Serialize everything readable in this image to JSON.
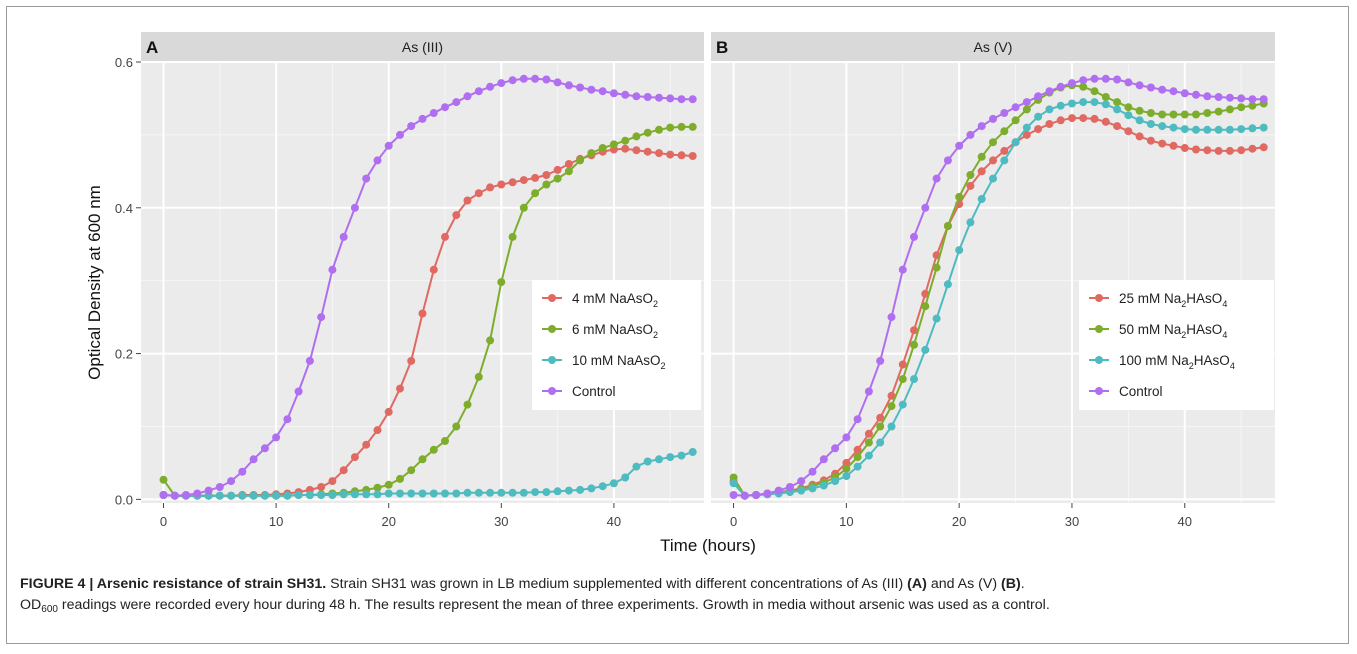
{
  "figure": {
    "ylabel": "Optical Density at 600 nm",
    "xlabel": "Time (hours)",
    "y_ticks": [
      "0.0",
      "0.2",
      "0.4",
      "0.6"
    ],
    "x_ticks": [
      "0",
      "10",
      "20",
      "30",
      "40"
    ]
  },
  "colors": {
    "red": "#E06A62",
    "green": "#7EAD2E",
    "cyan": "#4DBBC0",
    "purple": "#B06EF0",
    "panel": "#EBEBEB",
    "strip": "#D9D9D9"
  },
  "caption": {
    "label": "FIGURE 4 | Arsenic resistance of strain SH31.",
    "sentence1_pre": " Strain SH31 was grown in LB medium supplemented with different concentrations of As (III) ",
    "ref_a": "(A)",
    "sentence1_mid": " and As (V) ",
    "ref_b": "(B)",
    "sentence1_end": ".",
    "od_main": "OD",
    "od_sub": "600",
    "sentence2": " readings were recorded every hour during 48 h. The results represent the mean of three experiments. Growth in media without arsenic was used as a control."
  },
  "chart_data": [
    {
      "type": "line",
      "panel_letter": "A",
      "title": "As (III)",
      "xlim": [
        -2,
        48
      ],
      "ylim": [
        -0.005,
        0.6
      ],
      "x": [
        0,
        1,
        2,
        3,
        4,
        5,
        6,
        7,
        8,
        9,
        10,
        11,
        12,
        13,
        14,
        15,
        16,
        17,
        18,
        19,
        20,
        21,
        22,
        23,
        24,
        25,
        26,
        27,
        28,
        29,
        30,
        31,
        32,
        33,
        34,
        35,
        36,
        37,
        38,
        39,
        40,
        41,
        42,
        43,
        44,
        45,
        46,
        47
      ],
      "series": [
        {
          "name": "4 mM NaAsO2",
          "legend_main": "4 mM NaAsO",
          "legend_sub": "2",
          "color_key": "red",
          "values": [
            0.006,
            0.005,
            0.005,
            0.005,
            0.005,
            0.005,
            0.005,
            0.006,
            0.006,
            0.006,
            0.007,
            0.008,
            0.01,
            0.013,
            0.017,
            0.025,
            0.04,
            0.058,
            0.075,
            0.095,
            0.12,
            0.152,
            0.19,
            0.255,
            0.315,
            0.36,
            0.39,
            0.41,
            0.42,
            0.428,
            0.432,
            0.435,
            0.438,
            0.441,
            0.445,
            0.452,
            0.46,
            0.467,
            0.472,
            0.477,
            0.48,
            0.481,
            0.479,
            0.477,
            0.475,
            0.473,
            0.472,
            0.471
          ]
        },
        {
          "name": "6 mM NaAsO2",
          "legend_main": "6 mM NaAsO",
          "legend_sub": "2",
          "color_key": "green",
          "values": [
            0.027,
            0.005,
            0.005,
            0.005,
            0.005,
            0.005,
            0.005,
            0.005,
            0.005,
            0.005,
            0.005,
            0.005,
            0.006,
            0.006,
            0.007,
            0.008,
            0.009,
            0.011,
            0.013,
            0.016,
            0.02,
            0.028,
            0.04,
            0.055,
            0.068,
            0.08,
            0.1,
            0.13,
            0.168,
            0.218,
            0.298,
            0.36,
            0.4,
            0.42,
            0.432,
            0.44,
            0.45,
            0.465,
            0.475,
            0.482,
            0.487,
            0.492,
            0.498,
            0.503,
            0.507,
            0.51,
            0.511,
            0.511
          ]
        },
        {
          "name": "10 mM NaAsO2",
          "legend_main": "10 mM NaAsO",
          "legend_sub": "2",
          "color_key": "cyan",
          "values": [
            0.006,
            0.005,
            0.005,
            0.005,
            0.005,
            0.005,
            0.005,
            0.005,
            0.005,
            0.005,
            0.005,
            0.005,
            0.006,
            0.006,
            0.006,
            0.006,
            0.007,
            0.007,
            0.007,
            0.007,
            0.008,
            0.008,
            0.008,
            0.008,
            0.008,
            0.008,
            0.008,
            0.009,
            0.009,
            0.009,
            0.009,
            0.009,
            0.009,
            0.01,
            0.01,
            0.011,
            0.012,
            0.013,
            0.015,
            0.018,
            0.022,
            0.03,
            0.045,
            0.052,
            0.055,
            0.058,
            0.06,
            0.065
          ]
        },
        {
          "name": "Control",
          "legend_main": "Control",
          "legend_sub": "",
          "color_key": "purple",
          "values": [
            0.006,
            0.005,
            0.006,
            0.008,
            0.012,
            0.017,
            0.025,
            0.038,
            0.055,
            0.07,
            0.085,
            0.11,
            0.148,
            0.19,
            0.25,
            0.315,
            0.36,
            0.4,
            0.44,
            0.465,
            0.485,
            0.5,
            0.512,
            0.522,
            0.53,
            0.538,
            0.545,
            0.553,
            0.56,
            0.566,
            0.571,
            0.575,
            0.577,
            0.577,
            0.576,
            0.572,
            0.568,
            0.565,
            0.562,
            0.56,
            0.557,
            0.555,
            0.553,
            0.552,
            0.551,
            0.55,
            0.549,
            0.549
          ]
        }
      ],
      "legend_position": "right-center"
    },
    {
      "type": "line",
      "panel_letter": "B",
      "title": "As (V)",
      "xlim": [
        -2,
        48
      ],
      "ylim": [
        -0.005,
        0.6
      ],
      "x": [
        0,
        1,
        2,
        3,
        4,
        5,
        6,
        7,
        8,
        9,
        10,
        11,
        12,
        13,
        14,
        15,
        16,
        17,
        18,
        19,
        20,
        21,
        22,
        23,
        24,
        25,
        26,
        27,
        28,
        29,
        30,
        31,
        32,
        33,
        34,
        35,
        36,
        37,
        38,
        39,
        40,
        41,
        42,
        43,
        44,
        45,
        46,
        47
      ],
      "series": [
        {
          "name": "25 mM Na2HAsO4",
          "legend_main": "25 mM Na",
          "legend_sub": "2",
          "legend_tail": "HAsO",
          "legend_sub2": "4",
          "color_key": "red",
          "values": [
            0.025,
            0.005,
            0.006,
            0.008,
            0.01,
            0.012,
            0.015,
            0.02,
            0.026,
            0.035,
            0.05,
            0.068,
            0.09,
            0.112,
            0.142,
            0.185,
            0.232,
            0.282,
            0.335,
            0.375,
            0.405,
            0.43,
            0.45,
            0.465,
            0.478,
            0.49,
            0.5,
            0.508,
            0.515,
            0.52,
            0.523,
            0.523,
            0.522,
            0.518,
            0.512,
            0.505,
            0.498,
            0.492,
            0.488,
            0.485,
            0.482,
            0.48,
            0.479,
            0.478,
            0.478,
            0.479,
            0.481,
            0.483
          ]
        },
        {
          "name": "50 mM Na2HAsO4",
          "legend_main": "50 mM Na",
          "legend_sub": "2",
          "legend_tail": "HAsO",
          "legend_sub2": "4",
          "color_key": "green",
          "values": [
            0.03,
            0.005,
            0.006,
            0.007,
            0.009,
            0.011,
            0.014,
            0.018,
            0.023,
            0.03,
            0.042,
            0.058,
            0.078,
            0.1,
            0.128,
            0.165,
            0.212,
            0.265,
            0.318,
            0.375,
            0.415,
            0.445,
            0.47,
            0.49,
            0.505,
            0.52,
            0.535,
            0.548,
            0.558,
            0.565,
            0.568,
            0.566,
            0.56,
            0.552,
            0.545,
            0.538,
            0.533,
            0.53,
            0.528,
            0.528,
            0.528,
            0.528,
            0.53,
            0.532,
            0.535,
            0.538,
            0.54,
            0.543
          ]
        },
        {
          "name": "100 mM Na2HAsO4",
          "legend_main": "100 mM Na",
          "legend_sub": "2",
          "legend_tail": "HAsO",
          "legend_sub2": "4",
          "color_key": "cyan",
          "values": [
            0.022,
            0.005,
            0.006,
            0.007,
            0.008,
            0.01,
            0.012,
            0.015,
            0.019,
            0.025,
            0.032,
            0.045,
            0.06,
            0.078,
            0.1,
            0.13,
            0.165,
            0.205,
            0.248,
            0.295,
            0.342,
            0.38,
            0.412,
            0.44,
            0.465,
            0.49,
            0.51,
            0.525,
            0.535,
            0.54,
            0.543,
            0.545,
            0.545,
            0.542,
            0.535,
            0.527,
            0.52,
            0.515,
            0.512,
            0.51,
            0.508,
            0.507,
            0.507,
            0.507,
            0.507,
            0.508,
            0.509,
            0.51
          ]
        },
        {
          "name": "Control",
          "legend_main": "Control",
          "legend_sub": "",
          "legend_tail": "",
          "legend_sub2": "",
          "color_key": "purple",
          "values": [
            0.006,
            0.005,
            0.006,
            0.008,
            0.012,
            0.017,
            0.025,
            0.038,
            0.055,
            0.07,
            0.085,
            0.11,
            0.148,
            0.19,
            0.25,
            0.315,
            0.36,
            0.4,
            0.44,
            0.465,
            0.485,
            0.5,
            0.512,
            0.522,
            0.53,
            0.538,
            0.545,
            0.553,
            0.56,
            0.566,
            0.571,
            0.575,
            0.577,
            0.577,
            0.576,
            0.572,
            0.568,
            0.565,
            0.562,
            0.56,
            0.557,
            0.555,
            0.553,
            0.552,
            0.551,
            0.55,
            0.549,
            0.549
          ]
        }
      ],
      "legend_position": "right-center"
    }
  ]
}
